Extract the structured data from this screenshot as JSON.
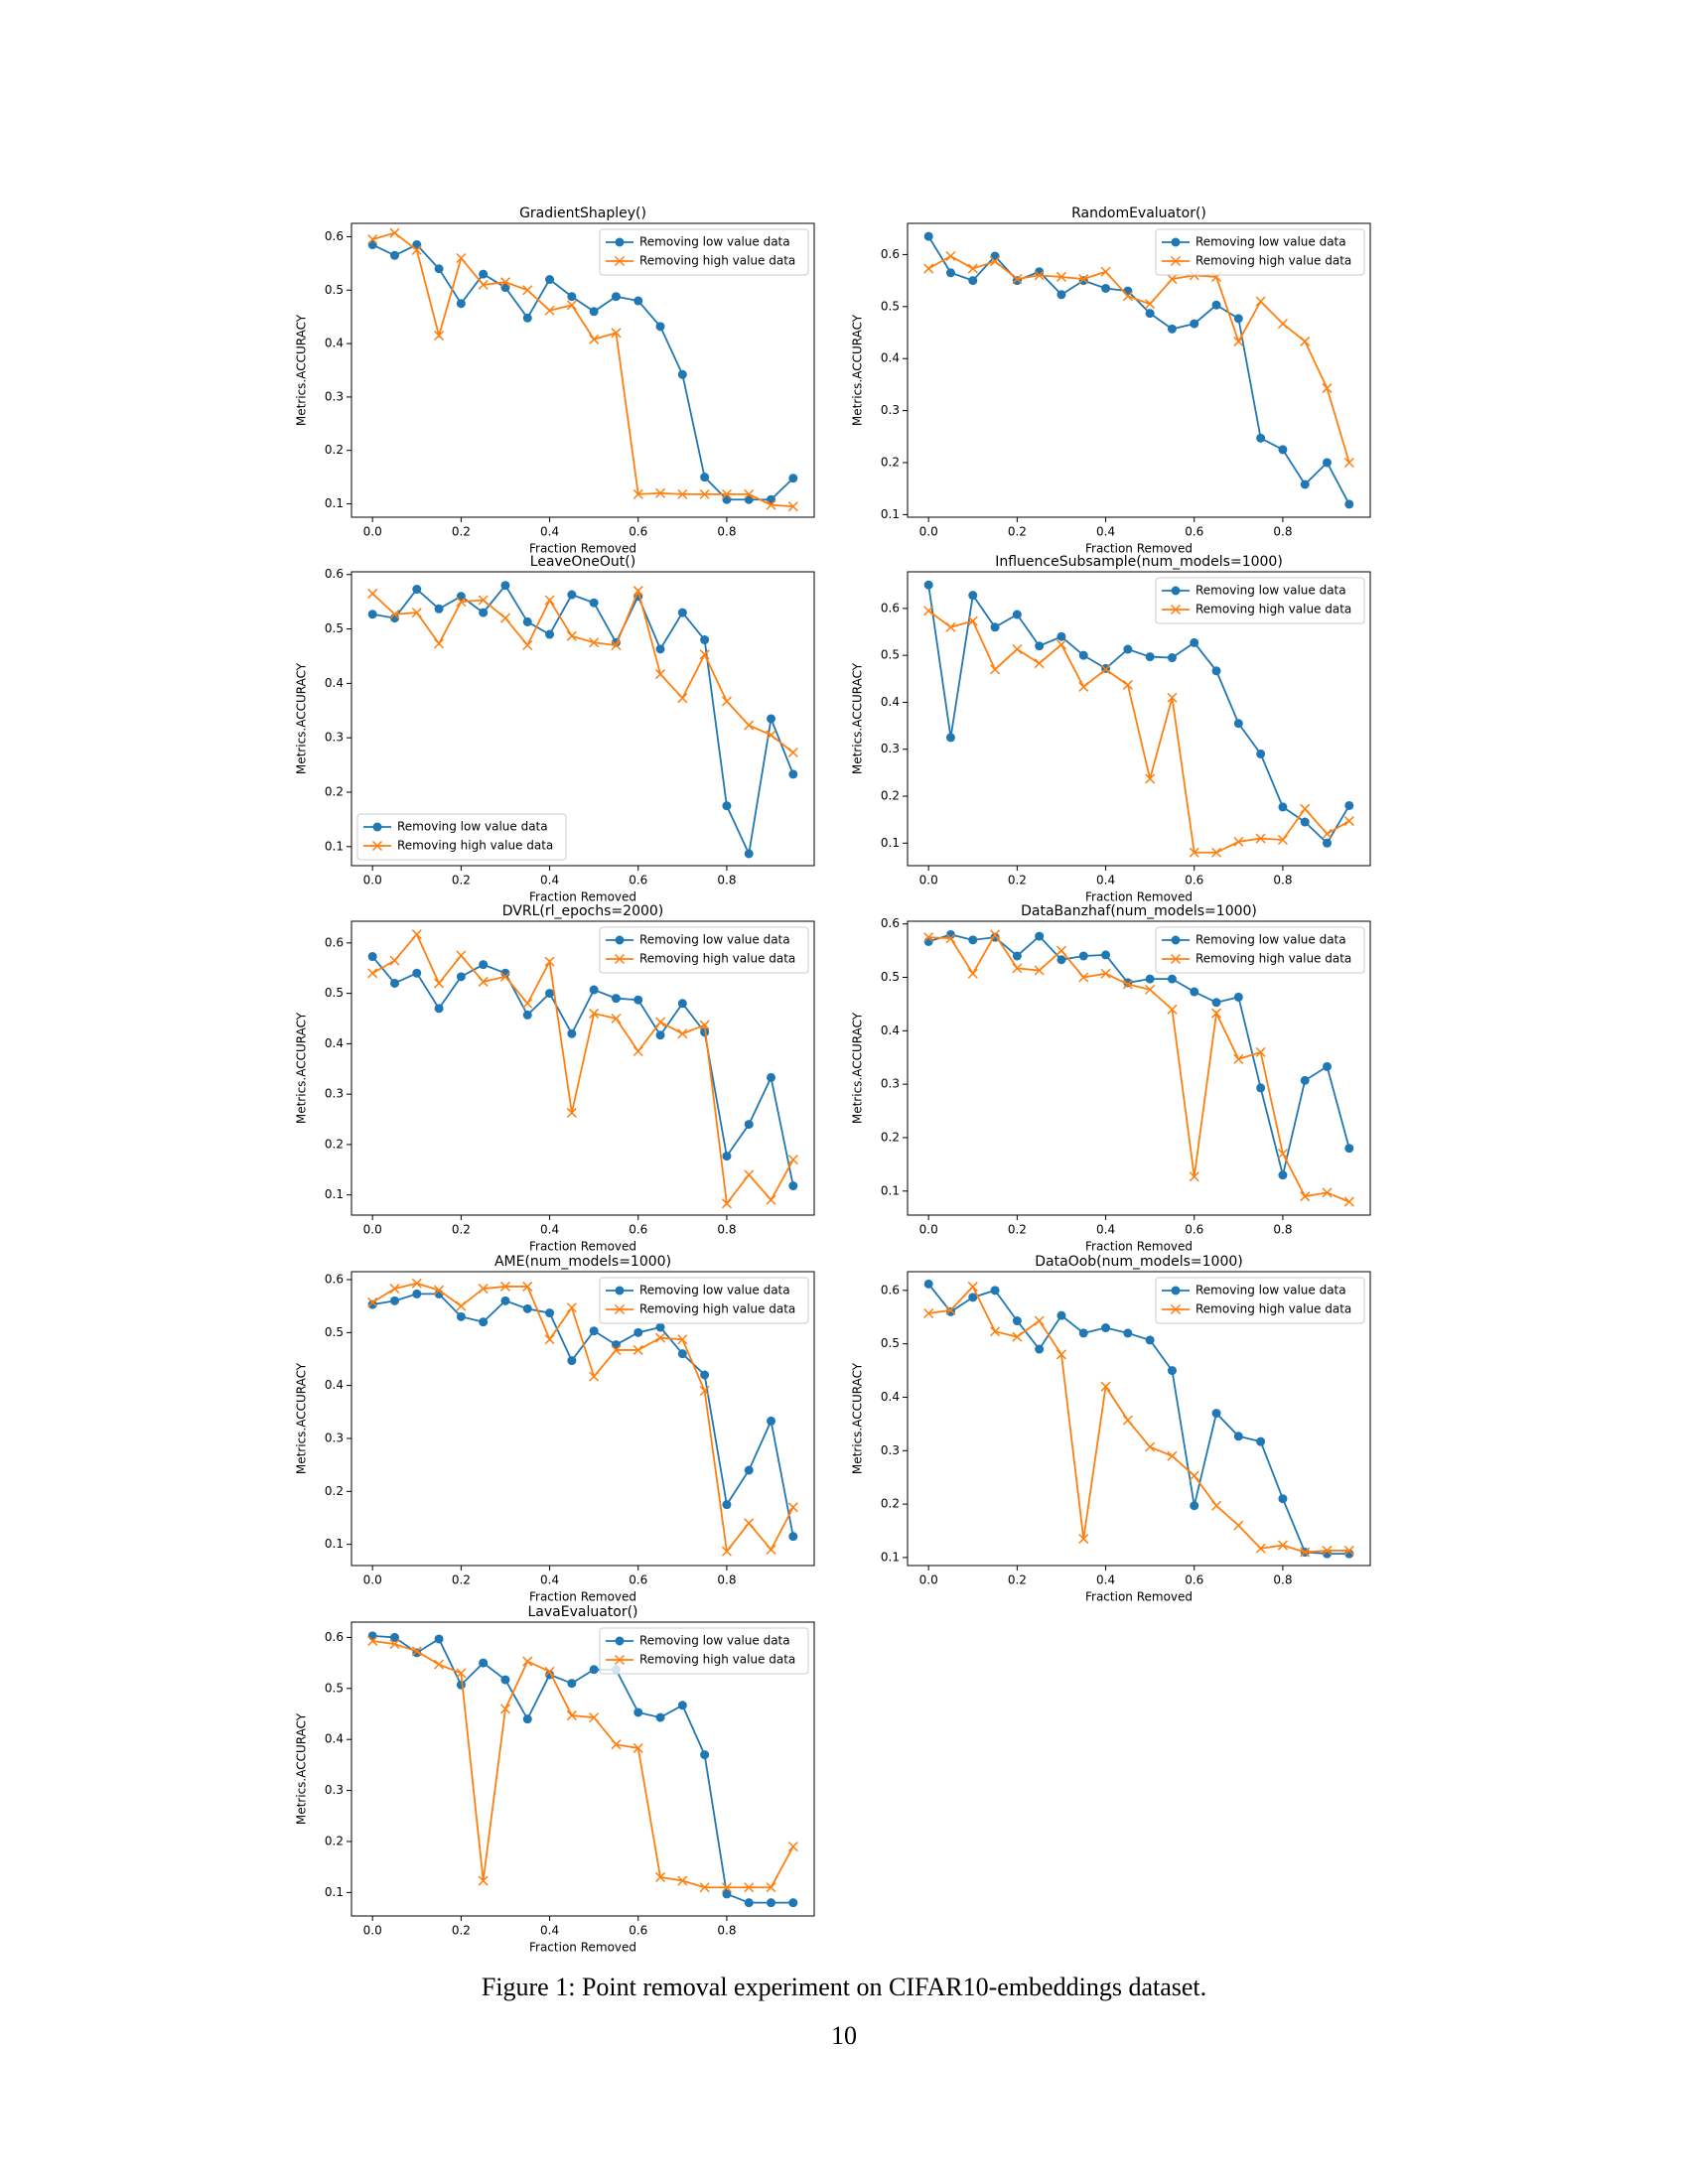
{
  "chart_data": [
    {
      "type": "line",
      "title": "GradientShapley()",
      "xlabel": "Fraction Removed",
      "ylabel": "Metrics.ACCURACY",
      "legend": "upper right",
      "x": [
        0,
        0.05,
        0.1,
        0.15,
        0.2,
        0.25,
        0.3,
        0.35,
        0.4,
        0.45,
        0.5,
        0.55,
        0.6,
        0.65,
        0.7,
        0.75,
        0.8,
        0.85,
        0.9,
        0.95
      ],
      "xlim": [
        -0.0475,
        0.9975
      ],
      "xticks": [
        {
          "value": 0,
          "label": "0.0"
        },
        0.2,
        0.4,
        0.6,
        0.8
      ],
      "ylim": [
        0.075,
        0.625
      ],
      "yticks": [
        0.1,
        0.2,
        0.3,
        0.4,
        0.5,
        0.6
      ],
      "series": [
        {
          "name": "Removing low value data",
          "color": "#1f77b4",
          "marker": "o",
          "values": [
            0.585,
            0.565,
            0.585,
            0.54,
            0.475,
            0.53,
            0.505,
            0.448,
            0.52,
            0.488,
            0.46,
            0.488,
            0.48,
            0.432,
            0.342,
            0.15,
            0.108,
            0.108,
            0.108,
            0.148
          ]
        },
        {
          "name": "Removing high value data",
          "color": "#ff7f0e",
          "marker": "x",
          "values": [
            0.595,
            0.607,
            0.575,
            0.415,
            0.56,
            0.51,
            0.515,
            0.5,
            0.462,
            0.472,
            0.408,
            0.42,
            0.118,
            0.12,
            0.118,
            0.118,
            0.118,
            0.118,
            0.098,
            0.095
          ]
        }
      ]
    },
    {
      "type": "line",
      "title": "RandomEvaluator()",
      "xlabel": "Fraction Removed",
      "ylabel": "Metrics.ACCURACY",
      "legend": "upper right",
      "x": [
        0,
        0.05,
        0.1,
        0.15,
        0.2,
        0.25,
        0.3,
        0.35,
        0.4,
        0.45,
        0.5,
        0.55,
        0.6,
        0.65,
        0.7,
        0.75,
        0.8,
        0.85,
        0.9,
        0.95
      ],
      "xlim": [
        -0.0475,
        0.9975
      ],
      "xticks": [
        {
          "value": 0,
          "label": "0.0"
        },
        0.2,
        0.4,
        0.6,
        0.8
      ],
      "ylim": [
        0.095,
        0.66
      ],
      "yticks": [
        0.1,
        0.2,
        0.3,
        0.4,
        0.5,
        0.6
      ],
      "series": [
        {
          "name": "Removing low value data",
          "color": "#1f77b4",
          "marker": "o",
          "values": [
            0.635,
            0.565,
            0.55,
            0.597,
            0.55,
            0.567,
            0.523,
            0.55,
            0.535,
            0.53,
            0.487,
            0.457,
            0.467,
            0.503,
            0.477,
            0.247,
            0.225,
            0.158,
            0.2,
            0.12
          ]
        },
        {
          "name": "Removing high value data",
          "color": "#ff7f0e",
          "marker": "x",
          "values": [
            0.573,
            0.597,
            0.573,
            0.587,
            0.553,
            0.56,
            0.557,
            0.553,
            0.567,
            0.52,
            0.505,
            0.553,
            0.56,
            0.557,
            0.433,
            0.51,
            0.467,
            0.433,
            0.343,
            0.2
          ]
        }
      ]
    },
    {
      "type": "line",
      "title": "LeaveOneOut()",
      "xlabel": "Fraction Removed",
      "ylabel": "Metrics.ACCURACY",
      "legend": "lower left",
      "x": [
        0,
        0.05,
        0.1,
        0.15,
        0.2,
        0.25,
        0.3,
        0.35,
        0.4,
        0.45,
        0.5,
        0.55,
        0.6,
        0.65,
        0.7,
        0.75,
        0.8,
        0.85,
        0.9,
        0.95
      ],
      "xlim": [
        -0.0475,
        0.9975
      ],
      "xticks": [
        {
          "value": 0,
          "label": "0.0"
        },
        0.2,
        0.4,
        0.6,
        0.8
      ],
      "ylim": [
        0.065,
        0.605
      ],
      "yticks": [
        0.1,
        0.2,
        0.3,
        0.4,
        0.5,
        0.6
      ],
      "series": [
        {
          "name": "Removing low value data",
          "color": "#1f77b4",
          "marker": "o",
          "values": [
            0.527,
            0.52,
            0.573,
            0.537,
            0.56,
            0.53,
            0.58,
            0.513,
            0.49,
            0.563,
            0.548,
            0.475,
            0.56,
            0.463,
            0.53,
            0.48,
            0.175,
            0.087,
            0.335,
            0.233
          ]
        },
        {
          "name": "Removing high value data",
          "color": "#ff7f0e",
          "marker": "x",
          "values": [
            0.565,
            0.527,
            0.53,
            0.473,
            0.55,
            0.553,
            0.52,
            0.47,
            0.553,
            0.487,
            0.475,
            0.47,
            0.57,
            0.417,
            0.373,
            0.453,
            0.367,
            0.323,
            0.305,
            0.273
          ]
        }
      ]
    },
    {
      "type": "line",
      "title": "InfluenceSubsample(num_models=1000)",
      "xlabel": "Fraction Removed",
      "ylabel": "Metrics.ACCURACY",
      "legend": "upper right",
      "x": [
        0,
        0.05,
        0.1,
        0.15,
        0.2,
        0.25,
        0.3,
        0.35,
        0.4,
        0.45,
        0.5,
        0.55,
        0.6,
        0.65,
        0.7,
        0.75,
        0.8,
        0.85,
        0.9,
        0.95
      ],
      "xlim": [
        -0.0475,
        0.9975
      ],
      "xticks": [
        {
          "value": 0,
          "label": "0.0"
        },
        0.2,
        0.4,
        0.6,
        0.8
      ],
      "ylim": [
        0.052,
        0.678
      ],
      "yticks": [
        0.1,
        0.2,
        0.3,
        0.4,
        0.5,
        0.6
      ],
      "series": [
        {
          "name": "Removing low value data",
          "color": "#1f77b4",
          "marker": "o",
          "values": [
            0.65,
            0.325,
            0.628,
            0.56,
            0.587,
            0.52,
            0.54,
            0.5,
            0.472,
            0.513,
            0.497,
            0.495,
            0.527,
            0.467,
            0.355,
            0.29,
            0.177,
            0.145,
            0.1,
            0.18
          ]
        },
        {
          "name": "Removing high value data",
          "color": "#ff7f0e",
          "marker": "x",
          "values": [
            0.595,
            0.56,
            0.573,
            0.47,
            0.513,
            0.483,
            0.523,
            0.433,
            0.47,
            0.437,
            0.237,
            0.41,
            0.08,
            0.08,
            0.103,
            0.11,
            0.107,
            0.173,
            0.12,
            0.147
          ]
        }
      ]
    },
    {
      "type": "line",
      "title": "DVRL(rl_epochs=2000)",
      "xlabel": "Fraction Removed",
      "ylabel": "Metrics.ACCURACY",
      "legend": "upper right",
      "x": [
        0,
        0.05,
        0.1,
        0.15,
        0.2,
        0.25,
        0.3,
        0.35,
        0.4,
        0.45,
        0.5,
        0.55,
        0.6,
        0.65,
        0.7,
        0.75,
        0.8,
        0.85,
        0.9,
        0.95
      ],
      "xlim": [
        -0.0475,
        0.9975
      ],
      "xticks": [
        {
          "value": 0,
          "label": "0.0"
        },
        0.2,
        0.4,
        0.6,
        0.8
      ],
      "ylim": [
        0.06,
        0.643
      ],
      "yticks": [
        0.1,
        0.2,
        0.3,
        0.4,
        0.5,
        0.6
      ],
      "series": [
        {
          "name": "Removing low value data",
          "color": "#1f77b4",
          "marker": "o",
          "values": [
            0.573,
            0.52,
            0.54,
            0.47,
            0.533,
            0.557,
            0.54,
            0.457,
            0.5,
            0.42,
            0.507,
            0.49,
            0.487,
            0.417,
            0.48,
            0.423,
            0.177,
            0.24,
            0.333,
            0.118
          ]
        },
        {
          "name": "Removing high value data",
          "color": "#ff7f0e",
          "marker": "x",
          "values": [
            0.54,
            0.565,
            0.617,
            0.52,
            0.575,
            0.523,
            0.533,
            0.48,
            0.563,
            0.263,
            0.46,
            0.45,
            0.385,
            0.443,
            0.42,
            0.437,
            0.083,
            0.14,
            0.09,
            0.17
          ]
        }
      ]
    },
    {
      "type": "line",
      "title": "DataBanzhaf(num_models=1000)",
      "xlabel": "Fraction Removed",
      "ylabel": "Metrics.ACCURACY",
      "legend": "upper right",
      "x": [
        0,
        0.05,
        0.1,
        0.15,
        0.2,
        0.25,
        0.3,
        0.35,
        0.4,
        0.45,
        0.5,
        0.55,
        0.6,
        0.65,
        0.7,
        0.75,
        0.8,
        0.85,
        0.9,
        0.95
      ],
      "xlim": [
        -0.0475,
        0.9975
      ],
      "xticks": [
        {
          "value": 0,
          "label": "0.0"
        },
        0.2,
        0.4,
        0.6,
        0.8
      ],
      "ylim": [
        0.055,
        0.605
      ],
      "yticks": [
        0.1,
        0.2,
        0.3,
        0.4,
        0.5,
        0.6
      ],
      "series": [
        {
          "name": "Removing low value data",
          "color": "#1f77b4",
          "marker": "o",
          "values": [
            0.567,
            0.58,
            0.57,
            0.575,
            0.54,
            0.577,
            0.533,
            0.54,
            0.542,
            0.49,
            0.497,
            0.497,
            0.473,
            0.453,
            0.463,
            0.293,
            0.13,
            0.307,
            0.333,
            0.18
          ]
        },
        {
          "name": "Removing high value data",
          "color": "#ff7f0e",
          "marker": "x",
          "values": [
            0.575,
            0.573,
            0.507,
            0.58,
            0.517,
            0.513,
            0.55,
            0.5,
            0.507,
            0.487,
            0.477,
            0.44,
            0.127,
            0.433,
            0.347,
            0.36,
            0.17,
            0.09,
            0.097,
            0.08
          ]
        }
      ]
    },
    {
      "type": "line",
      "title": "AME(num_models=1000)",
      "xlabel": "Fraction Removed",
      "ylabel": "Metrics.ACCURACY",
      "legend": "upper right",
      "x": [
        0,
        0.05,
        0.1,
        0.15,
        0.2,
        0.25,
        0.3,
        0.35,
        0.4,
        0.45,
        0.5,
        0.55,
        0.6,
        0.65,
        0.7,
        0.75,
        0.8,
        0.85,
        0.9,
        0.95
      ],
      "xlim": [
        -0.0475,
        0.9975
      ],
      "xticks": [
        {
          "value": 0,
          "label": "0.0"
        },
        0.2,
        0.4,
        0.6,
        0.8
      ],
      "ylim": [
        0.06,
        0.615
      ],
      "yticks": [
        0.1,
        0.2,
        0.3,
        0.4,
        0.5,
        0.6
      ],
      "series": [
        {
          "name": "Removing low value data",
          "color": "#1f77b4",
          "marker": "o",
          "values": [
            0.553,
            0.56,
            0.573,
            0.573,
            0.53,
            0.52,
            0.56,
            0.545,
            0.537,
            0.447,
            0.503,
            0.477,
            0.5,
            0.51,
            0.46,
            0.42,
            0.175,
            0.24,
            0.333,
            0.115
          ]
        },
        {
          "name": "Removing high value data",
          "color": "#ff7f0e",
          "marker": "x",
          "values": [
            0.557,
            0.583,
            0.593,
            0.58,
            0.55,
            0.583,
            0.587,
            0.587,
            0.487,
            0.547,
            0.417,
            0.467,
            0.467,
            0.49,
            0.487,
            0.39,
            0.087,
            0.14,
            0.09,
            0.17
          ]
        }
      ]
    },
    {
      "type": "line",
      "title": "DataOob(num_models=1000)",
      "xlabel": "Fraction Removed",
      "ylabel": "Metrics.ACCURACY",
      "legend": "upper right",
      "x": [
        0,
        0.05,
        0.1,
        0.15,
        0.2,
        0.25,
        0.3,
        0.35,
        0.4,
        0.45,
        0.5,
        0.55,
        0.6,
        0.65,
        0.7,
        0.75,
        0.8,
        0.85,
        0.9,
        0.95
      ],
      "xlim": [
        -0.0475,
        0.9975
      ],
      "xticks": [
        {
          "value": 0,
          "label": "0.0"
        },
        0.2,
        0.4,
        0.6,
        0.8
      ],
      "ylim": [
        0.085,
        0.635
      ],
      "yticks": [
        0.1,
        0.2,
        0.3,
        0.4,
        0.5,
        0.6
      ],
      "series": [
        {
          "name": "Removing low value data",
          "color": "#1f77b4",
          "marker": "o",
          "values": [
            0.612,
            0.56,
            0.587,
            0.6,
            0.543,
            0.49,
            0.553,
            0.52,
            0.53,
            0.52,
            0.507,
            0.45,
            0.197,
            0.37,
            0.327,
            0.317,
            0.21,
            0.11,
            0.107,
            0.107
          ]
        },
        {
          "name": "Removing high value data",
          "color": "#ff7f0e",
          "marker": "x",
          "values": [
            0.557,
            0.563,
            0.607,
            0.523,
            0.513,
            0.543,
            0.48,
            0.135,
            0.42,
            0.357,
            0.307,
            0.29,
            0.253,
            0.197,
            0.16,
            0.117,
            0.123,
            0.11,
            0.113,
            0.113
          ]
        }
      ]
    },
    {
      "type": "line",
      "title": "LavaEvaluator()",
      "xlabel": "Fraction Removed",
      "ylabel": "Metrics.ACCURACY",
      "legend": "upper right",
      "x": [
        0,
        0.05,
        0.1,
        0.15,
        0.2,
        0.25,
        0.3,
        0.35,
        0.4,
        0.45,
        0.5,
        0.55,
        0.6,
        0.65,
        0.7,
        0.75,
        0.8,
        0.85,
        0.9,
        0.95
      ],
      "xlim": [
        -0.0475,
        0.9975
      ],
      "xticks": [
        {
          "value": 0,
          "label": "0.0"
        },
        0.2,
        0.4,
        0.6,
        0.8
      ],
      "ylim": [
        0.054,
        0.63
      ],
      "yticks": [
        0.1,
        0.2,
        0.3,
        0.4,
        0.5,
        0.6
      ],
      "series": [
        {
          "name": "Removing low value data",
          "color": "#1f77b4",
          "marker": "o",
          "values": [
            0.603,
            0.6,
            0.57,
            0.597,
            0.507,
            0.55,
            0.517,
            0.44,
            0.527,
            0.51,
            0.537,
            0.537,
            0.453,
            0.443,
            0.467,
            0.37,
            0.097,
            0.08,
            0.08,
            0.08
          ]
        },
        {
          "name": "Removing high value data",
          "color": "#ff7f0e",
          "marker": "x",
          "values": [
            0.593,
            0.587,
            0.573,
            0.547,
            0.53,
            0.123,
            0.46,
            0.553,
            0.533,
            0.447,
            0.443,
            0.39,
            0.383,
            0.13,
            0.123,
            0.11,
            0.11,
            0.11,
            0.11,
            0.19
          ]
        }
      ]
    }
  ],
  "caption": "Figure 1: Point removal experiment on CIFAR10-embeddings dataset.",
  "page_number": "10"
}
